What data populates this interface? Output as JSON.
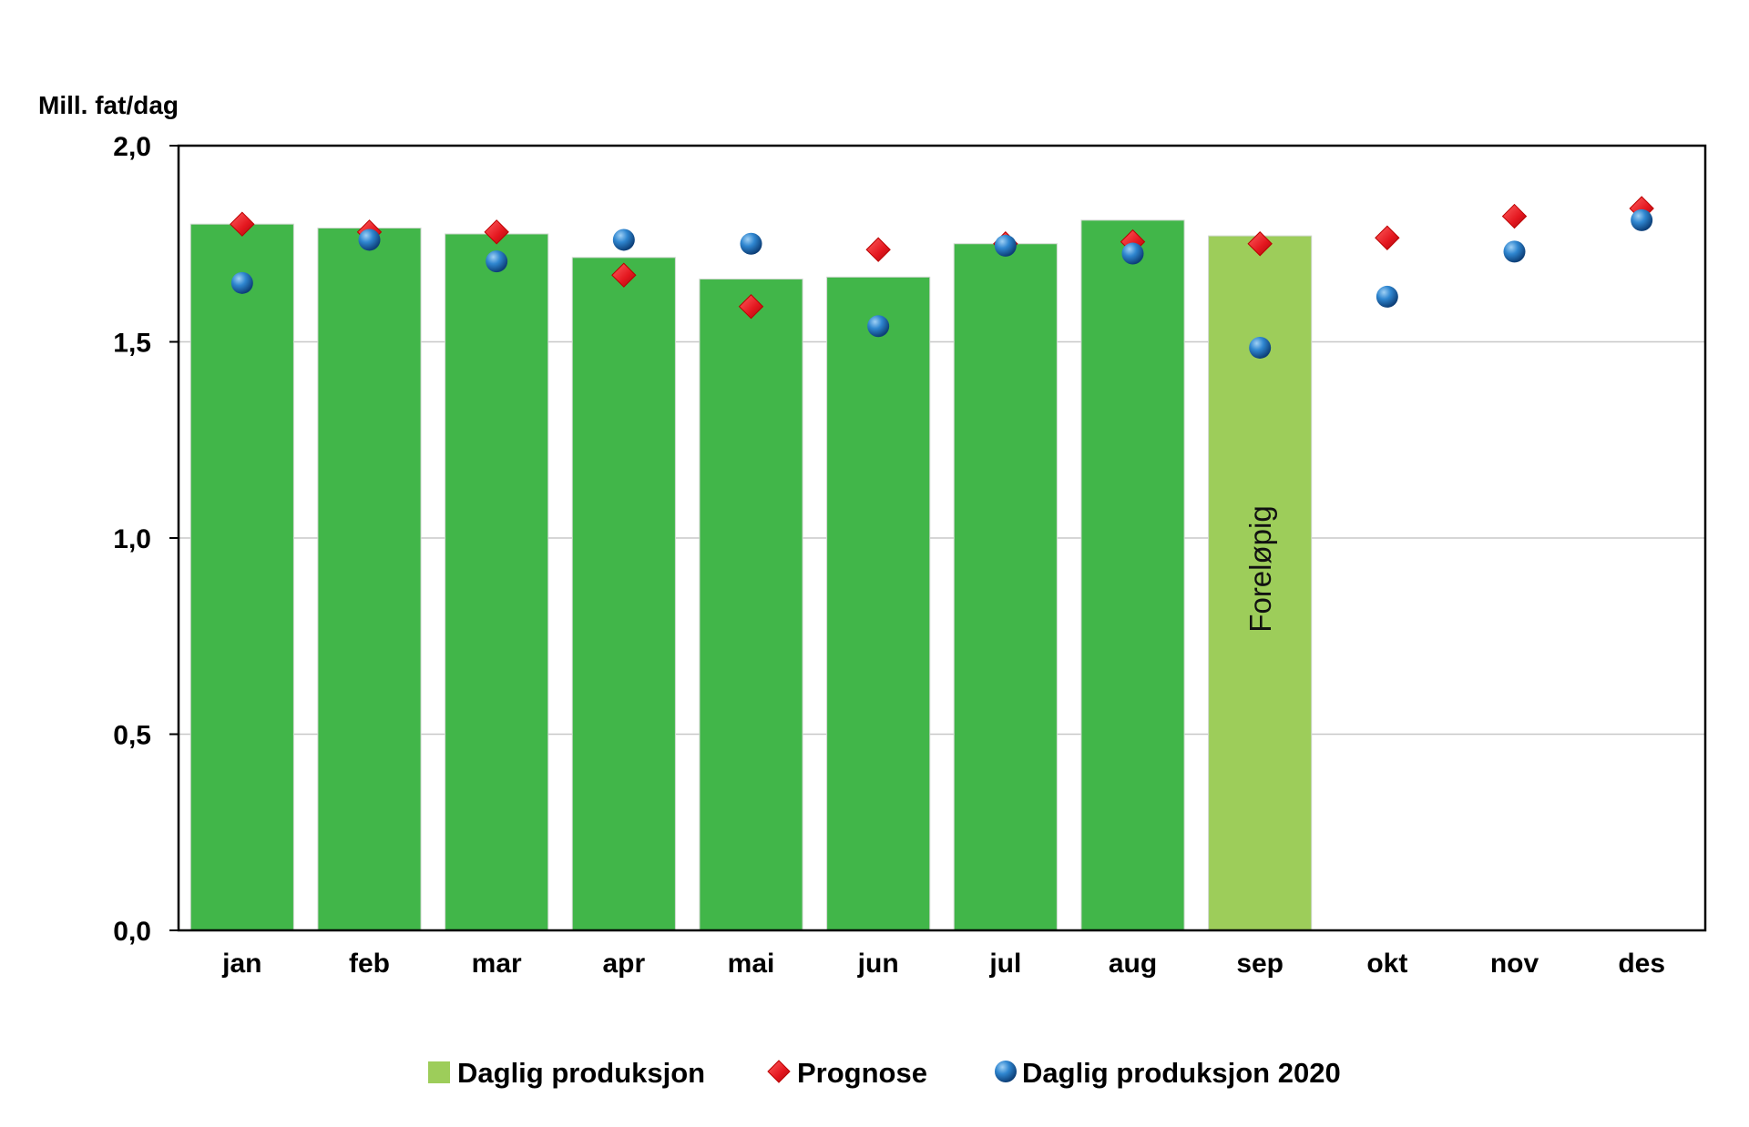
{
  "chart_data": {
    "type": "bar",
    "ylabel": "Mill. fat/dag",
    "ylim": [
      0,
      2.0
    ],
    "yticks": [
      "0,0",
      "0,5",
      "1,0",
      "1,5",
      "2,0"
    ],
    "grid": true,
    "legend_position": "bottom",
    "categories": [
      "jan",
      "feb",
      "mar",
      "apr",
      "mai",
      "jun",
      "jul",
      "aug",
      "sep",
      "okt",
      "nov",
      "des"
    ],
    "series": [
      {
        "name": "Daglig produksjon",
        "kind": "bar",
        "color": "#41b649",
        "preliminary_color": "#9dcd5a",
        "values": [
          1.8,
          1.79,
          1.775,
          1.715,
          1.66,
          1.665,
          1.75,
          1.81,
          1.77,
          null,
          null,
          null
        ]
      },
      {
        "name": "Prognose",
        "kind": "marker-diamond",
        "color": "#e3161e",
        "values": [
          1.8,
          1.78,
          1.78,
          1.67,
          1.59,
          1.735,
          1.75,
          1.755,
          1.75,
          1.765,
          1.82,
          1.84
        ]
      },
      {
        "name": "Daglig produksjon 2020",
        "kind": "marker-circle",
        "color": "#1f6fb8",
        "values": [
          1.65,
          1.76,
          1.705,
          1.76,
          1.75,
          1.54,
          1.745,
          1.725,
          1.485,
          1.615,
          1.73,
          1.81
        ]
      }
    ],
    "annotation": {
      "text": "Foreløpig",
      "category": "sep"
    }
  }
}
